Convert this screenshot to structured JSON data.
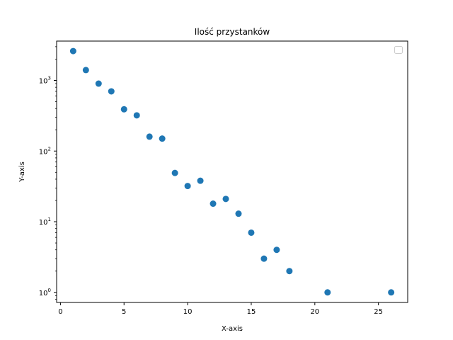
{
  "chart_data": {
    "type": "scatter",
    "title": "Ilość przystanków",
    "xlabel": "X-axis",
    "ylabel": "Y-axis",
    "xlim": [
      -0.3,
      27.3
    ],
    "ylim": [
      0.72,
      3600
    ],
    "yscale": "log",
    "x_ticks": [
      0,
      5,
      10,
      15,
      20,
      25
    ],
    "y_ticks": [
      {
        "value": 1,
        "base": "10",
        "exp": "0"
      },
      {
        "value": 10,
        "base": "10",
        "exp": "1"
      },
      {
        "value": 100,
        "base": "10",
        "exp": "2"
      },
      {
        "value": 1000,
        "base": "10",
        "exp": "3"
      }
    ],
    "grid": false,
    "legend": {
      "placement": "top-right",
      "entries": []
    },
    "marker_color": "#1f77b4",
    "points": [
      {
        "x": 1,
        "y": 2600
      },
      {
        "x": 2,
        "y": 1400
      },
      {
        "x": 3,
        "y": 900
      },
      {
        "x": 4,
        "y": 700
      },
      {
        "x": 5,
        "y": 390
      },
      {
        "x": 6,
        "y": 320
      },
      {
        "x": 7,
        "y": 160
      },
      {
        "x": 8,
        "y": 150
      },
      {
        "x": 9,
        "y": 49
      },
      {
        "x": 10,
        "y": 32
      },
      {
        "x": 11,
        "y": 38
      },
      {
        "x": 12,
        "y": 18
      },
      {
        "x": 13,
        "y": 21
      },
      {
        "x": 14,
        "y": 13
      },
      {
        "x": 15,
        "y": 7
      },
      {
        "x": 16,
        "y": 3
      },
      {
        "x": 17,
        "y": 4
      },
      {
        "x": 18,
        "y": 2
      },
      {
        "x": 21,
        "y": 1
      },
      {
        "x": 26,
        "y": 1
      }
    ]
  }
}
